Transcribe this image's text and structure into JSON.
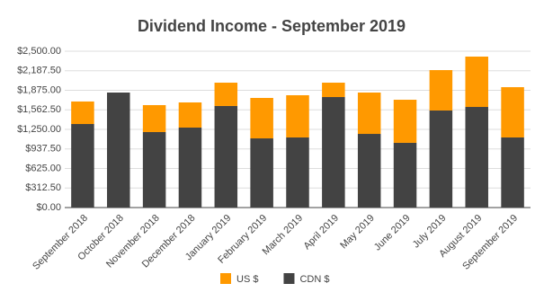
{
  "chart_data": {
    "type": "stacked_bar",
    "title": "Dividend Income - September 2019",
    "categories": [
      "September 2018",
      "October 2018",
      "November 2018",
      "December 2018",
      "January 2019",
      "February 2019",
      "March 2019",
      "April 2019",
      "May 2019",
      "June 2019",
      "July 2019",
      "August 2019",
      "September 2019"
    ],
    "series": [
      {
        "name": "US $",
        "color": "#ff9900",
        "values": [
          360,
          0,
          431,
          402,
          373,
          647,
          675,
          230,
          661,
          689,
          646,
          805,
          804
        ]
      },
      {
        "name": "CDN $",
        "color": "#434343",
        "values": [
          1336,
          1839,
          1207,
          1279,
          1624,
          1106,
          1121,
          1767,
          1178,
          1035,
          1552,
          1609,
          1121
        ]
      }
    ],
    "ylim": [
      0,
      2500
    ],
    "yticks": [
      {
        "value": 0,
        "label": "$0.00"
      },
      {
        "value": 312.5,
        "label": "$312.50"
      },
      {
        "value": 625,
        "label": "$625.00"
      },
      {
        "value": 937.5,
        "label": "$937.50"
      },
      {
        "value": 1250,
        "label": "$1,250.00"
      },
      {
        "value": 1562.5,
        "label": "$1,562.50"
      },
      {
        "value": 1875,
        "label": "$1,875.00"
      },
      {
        "value": 2187.5,
        "label": "$2,187.50"
      },
      {
        "value": 2500,
        "label": "$2,500.00"
      }
    ],
    "grid": true,
    "legend": "bottom"
  }
}
